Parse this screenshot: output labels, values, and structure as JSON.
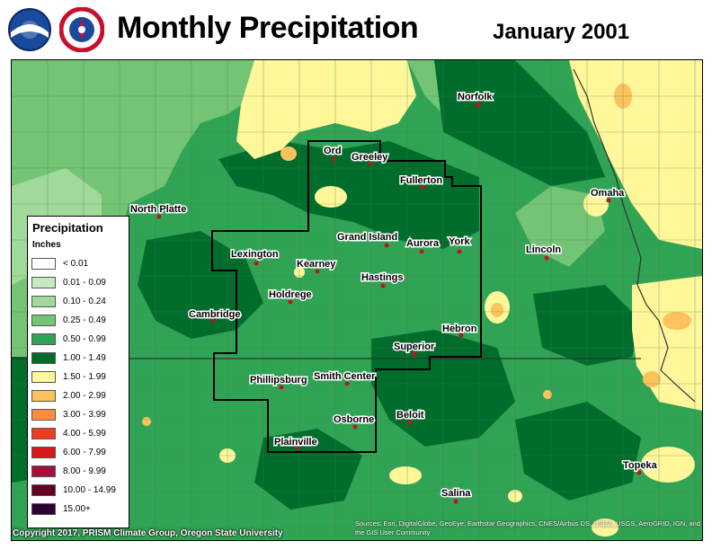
{
  "title": "Monthly Precipitation",
  "date": "January 2001",
  "logos": [
    "noaa-logo",
    "national-weather-service-logo"
  ],
  "legend": {
    "title": "Precipitation",
    "units": "Inches",
    "items": [
      {
        "label": "< 0.01",
        "color": "#ffffff"
      },
      {
        "label": "0.01 - 0.09",
        "color": "#c7e9c0"
      },
      {
        "label": "0.10 - 0.24",
        "color": "#a1d99b"
      },
      {
        "label": "0.25 - 0.49",
        "color": "#74c476"
      },
      {
        "label": "0.50 - 0.99",
        "color": "#31a354"
      },
      {
        "label": "1.00 - 1.49",
        "color": "#006d2c"
      },
      {
        "label": "1.50 - 1.99",
        "color": "#fff79a"
      },
      {
        "label": "2.00 - 2.99",
        "color": "#fdc25c"
      },
      {
        "label": "3.00 - 3.99",
        "color": "#fd8d3c"
      },
      {
        "label": "4.00 - 5.99",
        "color": "#f03b20"
      },
      {
        "label": "6.00 - 7.99",
        "color": "#d7191c"
      },
      {
        "label": "8.00 - 9.99",
        "color": "#a50f3b"
      },
      {
        "label": "10.00 - 14.99",
        "color": "#67001f"
      },
      {
        "label": "15.00+",
        "color": "#2d0033"
      }
    ]
  },
  "cities": [
    {
      "name": "Norfolk"
    },
    {
      "name": "Ord"
    },
    {
      "name": "Greeley"
    },
    {
      "name": "Fullerton"
    },
    {
      "name": "Omaha"
    },
    {
      "name": "North Platte"
    },
    {
      "name": "Grand Island"
    },
    {
      "name": "Aurora"
    },
    {
      "name": "York"
    },
    {
      "name": "Lincoln"
    },
    {
      "name": "Lexington"
    },
    {
      "name": "Kearney"
    },
    {
      "name": "Hastings"
    },
    {
      "name": "Holdrege"
    },
    {
      "name": "Cambridge"
    },
    {
      "name": "Hebron"
    },
    {
      "name": "Superior"
    },
    {
      "name": "Phillipsburg"
    },
    {
      "name": "Smith Center"
    },
    {
      "name": "Beloit"
    },
    {
      "name": "Osborne"
    },
    {
      "name": "Plainville"
    },
    {
      "name": "Salina"
    },
    {
      "name": "Topeka"
    }
  ],
  "copyright": "Copyright 2017, PRISM Climate Group, Oregon State University",
  "sources": "Sources: Esri, DigitalGlobe, GeoEye, Earthstar Geographics, CNES/Airbus DS, USDA, USGS, AeroGRID, IGN, and the GIS User Community"
}
